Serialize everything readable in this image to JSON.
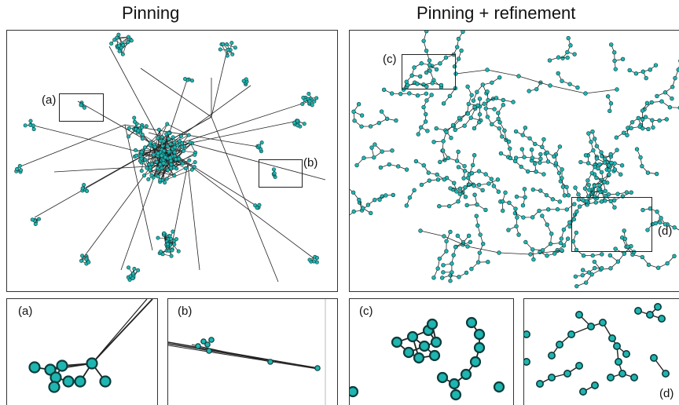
{
  "titles": {
    "left": "Pinning",
    "right": "Pinning +  refinement"
  },
  "labels": {
    "a": "(a)",
    "b": "(b)",
    "c": "(c)",
    "d": "(d)"
  },
  "colors": {
    "node_fill": "#1fb5b0",
    "node_stroke": "#0d3b3b",
    "edge": "#222222"
  }
}
